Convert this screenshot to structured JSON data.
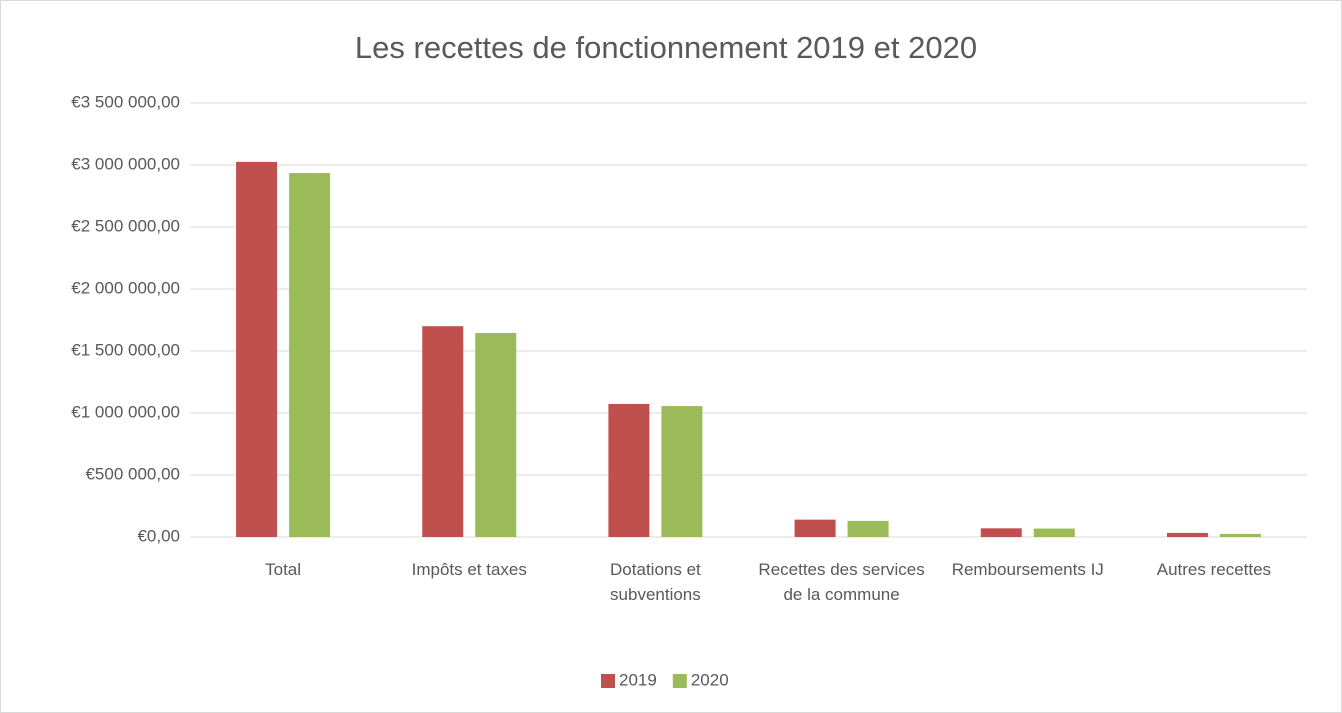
{
  "chart_data": {
    "type": "bar",
    "title": "Les recettes de fonctionnement 2019 et 2020",
    "categories": [
      "Total",
      "Impôts et taxes",
      "Dotations et subventions",
      "Recettes des services de la commune",
      "Remboursements IJ",
      "Autres recettes"
    ],
    "series": [
      {
        "name": "2019",
        "color": "#c0504d",
        "values": [
          3025000,
          1700000,
          1073000,
          140000,
          70000,
          33000
        ]
      },
      {
        "name": "2020",
        "color": "#9bbb59",
        "values": [
          2935000,
          1645000,
          1056000,
          130000,
          68000,
          25000
        ]
      }
    ],
    "ylim": [
      0,
      3500000
    ],
    "yticks": [
      {
        "value": 0,
        "label": "€0,00"
      },
      {
        "value": 500000,
        "label": "€500 000,00"
      },
      {
        "value": 1000000,
        "label": "€1 000 000,00"
      },
      {
        "value": 1500000,
        "label": "€1 500 000,00"
      },
      {
        "value": 2000000,
        "label": "€2 000 000,00"
      },
      {
        "value": 2500000,
        "label": "€2 500 000,00"
      },
      {
        "value": 3000000,
        "label": "€3 000 000,00"
      },
      {
        "value": 3500000,
        "label": "€3 500 000,00"
      }
    ],
    "grid": true,
    "legend": "bottom"
  }
}
